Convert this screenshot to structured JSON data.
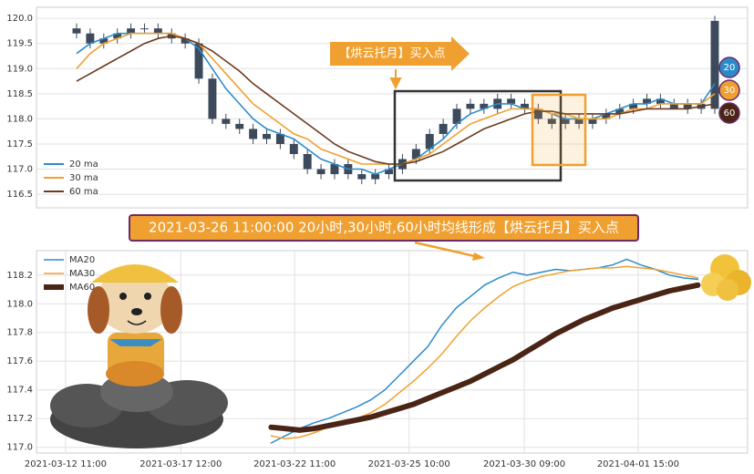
{
  "chart_data": [
    {
      "type": "candlestick",
      "candle_color": "#3d4a5c",
      "open": [
        119.8,
        119.7,
        119.5,
        119.6,
        119.7,
        119.8,
        119.8,
        119.7,
        119.6,
        119.5,
        118.8,
        118.0,
        117.9,
        117.8,
        117.6,
        117.7,
        117.5,
        117.3,
        117.0,
        116.9,
        117.1,
        116.9,
        116.8,
        116.9,
        117.0,
        117.2,
        117.4,
        117.7,
        117.9,
        118.2,
        118.3,
        118.2,
        118.4,
        118.3,
        118.2,
        118.0,
        117.9,
        118.0,
        117.9,
        118.0,
        118.1,
        118.2,
        118.3,
        118.4,
        118.3,
        118.2,
        118.3,
        118.2
      ],
      "high": [
        119.9,
        119.8,
        119.7,
        119.8,
        119.9,
        119.9,
        119.9,
        119.8,
        119.7,
        119.6,
        118.9,
        118.1,
        118.0,
        117.9,
        117.8,
        117.8,
        117.6,
        117.4,
        117.1,
        117.2,
        117.2,
        117.0,
        117.0,
        117.1,
        117.3,
        117.5,
        117.8,
        118.0,
        118.3,
        118.4,
        118.4,
        118.5,
        118.5,
        118.4,
        118.3,
        118.1,
        118.1,
        118.1,
        118.1,
        118.2,
        118.3,
        118.4,
        118.5,
        118.5,
        118.4,
        118.4,
        118.4,
        120.05
      ],
      "low": [
        119.6,
        119.4,
        119.4,
        119.5,
        119.6,
        119.7,
        119.6,
        119.5,
        119.4,
        118.7,
        117.9,
        117.8,
        117.7,
        117.5,
        117.5,
        117.4,
        117.2,
        116.9,
        116.8,
        116.8,
        116.8,
        116.7,
        116.7,
        116.8,
        116.9,
        117.1,
        117.3,
        117.6,
        117.8,
        118.1,
        118.1,
        118.1,
        118.2,
        118.1,
        117.9,
        117.8,
        117.8,
        117.8,
        117.8,
        117.9,
        118.0,
        118.1,
        118.2,
        118.2,
        118.2,
        118.1,
        118.1,
        118.1
      ],
      "close": [
        119.7,
        119.5,
        119.6,
        119.7,
        119.8,
        119.8,
        119.7,
        119.6,
        119.5,
        118.8,
        118.0,
        117.9,
        117.8,
        117.6,
        117.7,
        117.5,
        117.3,
        117.0,
        116.9,
        117.1,
        116.9,
        116.8,
        116.9,
        117.0,
        117.2,
        117.4,
        117.7,
        117.9,
        118.2,
        118.3,
        118.2,
        118.4,
        118.3,
        118.2,
        118.0,
        117.9,
        118.0,
        117.9,
        118.0,
        118.1,
        118.2,
        118.3,
        118.4,
        118.3,
        118.2,
        118.3,
        118.2,
        119.95
      ],
      "series": [
        {
          "name": "20 ma",
          "color": "#2b8ccb",
          "values": [
            119.3,
            119.5,
            119.6,
            119.7,
            119.7,
            119.7,
            119.7,
            119.7,
            119.6,
            119.4,
            119.0,
            118.6,
            118.3,
            118.0,
            117.8,
            117.7,
            117.6,
            117.4,
            117.2,
            117.1,
            117.0,
            117.0,
            116.9,
            117.0,
            117.1,
            117.2,
            117.4,
            117.6,
            117.9,
            118.1,
            118.2,
            118.3,
            118.3,
            118.2,
            118.2,
            118.1,
            118.0,
            118.0,
            118.0,
            118.1,
            118.2,
            118.3,
            118.3,
            118.4,
            118.3,
            118.3,
            118.3,
            118.7
          ]
        },
        {
          "name": "30 ma",
          "color": "#f0a030",
          "values": [
            119.0,
            119.3,
            119.5,
            119.6,
            119.7,
            119.7,
            119.7,
            119.7,
            119.6,
            119.5,
            119.2,
            118.9,
            118.6,
            118.3,
            118.1,
            117.9,
            117.7,
            117.6,
            117.4,
            117.3,
            117.2,
            117.1,
            117.1,
            117.1,
            117.1,
            117.2,
            117.3,
            117.5,
            117.7,
            117.9,
            118.0,
            118.1,
            118.2,
            118.2,
            118.2,
            118.1,
            118.1,
            118.0,
            118.0,
            118.0,
            118.1,
            118.2,
            118.2,
            118.3,
            118.3,
            118.3,
            118.3,
            118.5
          ]
        },
        {
          "name": "60 ma",
          "color": "#6b3a1f",
          "values": [
            118.75,
            118.9,
            119.05,
            119.2,
            119.35,
            119.5,
            119.6,
            119.65,
            119.6,
            119.5,
            119.35,
            119.15,
            118.95,
            118.7,
            118.5,
            118.3,
            118.1,
            117.9,
            117.7,
            117.5,
            117.35,
            117.25,
            117.15,
            117.1,
            117.1,
            117.15,
            117.25,
            117.35,
            117.5,
            117.65,
            117.8,
            117.9,
            118.0,
            118.1,
            118.15,
            118.15,
            118.1,
            118.1,
            118.1,
            118.1,
            118.1,
            118.15,
            118.2,
            118.2,
            118.2,
            118.2,
            118.25,
            118.3
          ]
        }
      ],
      "ylim": [
        116.23,
        120.22
      ],
      "yticks": [
        116.5,
        {
          "value": 117,
          "label": "117.0"
        },
        117.5,
        {
          "value": 118,
          "label": "118.0"
        },
        118.5,
        {
          "value": 119,
          "label": "119.0"
        },
        119.5,
        {
          "value": 120,
          "label": "120.0"
        }
      ],
      "grid": true,
      "legend": "lower left"
    },
    {
      "type": "line",
      "x": [
        33,
        35,
        37,
        39,
        41,
        43,
        45,
        47,
        49,
        51,
        53,
        55,
        57,
        59,
        61,
        63,
        65,
        67,
        69,
        71,
        73,
        75,
        77,
        79,
        81,
        83,
        85,
        87,
        89,
        91,
        93
      ],
      "series": [
        {
          "name": "MA20",
          "color": "#2b8ccb",
          "width": 1.5,
          "values": [
            117.03,
            117.08,
            117.13,
            117.17,
            117.2,
            117.24,
            117.28,
            117.33,
            117.4,
            117.5,
            117.6,
            117.7,
            117.85,
            117.97,
            118.05,
            118.13,
            118.18,
            118.22,
            118.2,
            118.22,
            118.24,
            118.23,
            118.24,
            118.25,
            118.27,
            118.31,
            118.27,
            118.24,
            118.2,
            118.18,
            118.17
          ]
        },
        {
          "name": "MA30",
          "color": "#f0a030",
          "width": 1.5,
          "values": [
            117.08,
            117.06,
            117.07,
            117.1,
            117.14,
            117.17,
            117.2,
            117.24,
            117.3,
            117.38,
            117.46,
            117.55,
            117.65,
            117.77,
            117.88,
            117.97,
            118.05,
            118.12,
            118.16,
            118.19,
            118.21,
            118.23,
            118.24,
            118.25,
            118.25,
            118.26,
            118.25,
            118.24,
            118.22,
            118.2,
            118.18
          ]
        },
        {
          "name": "MA60",
          "color": "#4a2414",
          "width": 6,
          "values": [
            117.14,
            117.13,
            117.12,
            117.13,
            117.15,
            117.17,
            117.19,
            117.21,
            117.24,
            117.27,
            117.3,
            117.34,
            117.38,
            117.42,
            117.46,
            117.51,
            117.56,
            117.61,
            117.67,
            117.73,
            117.79,
            117.84,
            117.89,
            117.93,
            117.97,
            118.0,
            118.03,
            118.06,
            118.09,
            118.11,
            118.13
          ]
        }
      ],
      "xlim": [
        0,
        100
      ],
      "xticks": [
        {
          "value": 4.1,
          "label": "2021-03-12 11:00"
        },
        {
          "value": 20.3,
          "label": "2021-03-17 12:00"
        },
        {
          "value": 36.3,
          "label": "2021-03-22 11:00"
        },
        {
          "value": 52.4,
          "label": "2021-03-25 10:00"
        },
        {
          "value": 68.6,
          "label": "2021-03-30 09:00"
        },
        {
          "value": 84.6,
          "label": "2021-04-01 15:00"
        }
      ],
      "ylim": [
        116.96,
        118.37
      ],
      "yticks": [
        {
          "value": 117,
          "label": "117.0"
        },
        117.2,
        117.4,
        117.6,
        117.8,
        {
          "value": 118,
          "label": "118.0"
        },
        118.2
      ],
      "grid": true,
      "legend": "upper left"
    }
  ],
  "annotations": {
    "buy_label": "【烘云托月】买入点",
    "banner": "2021-03-26 11:00:00 20小时,30小时,60小时均线形成【烘云托月】买入点",
    "badges": [
      "20",
      "30",
      "60"
    ]
  }
}
